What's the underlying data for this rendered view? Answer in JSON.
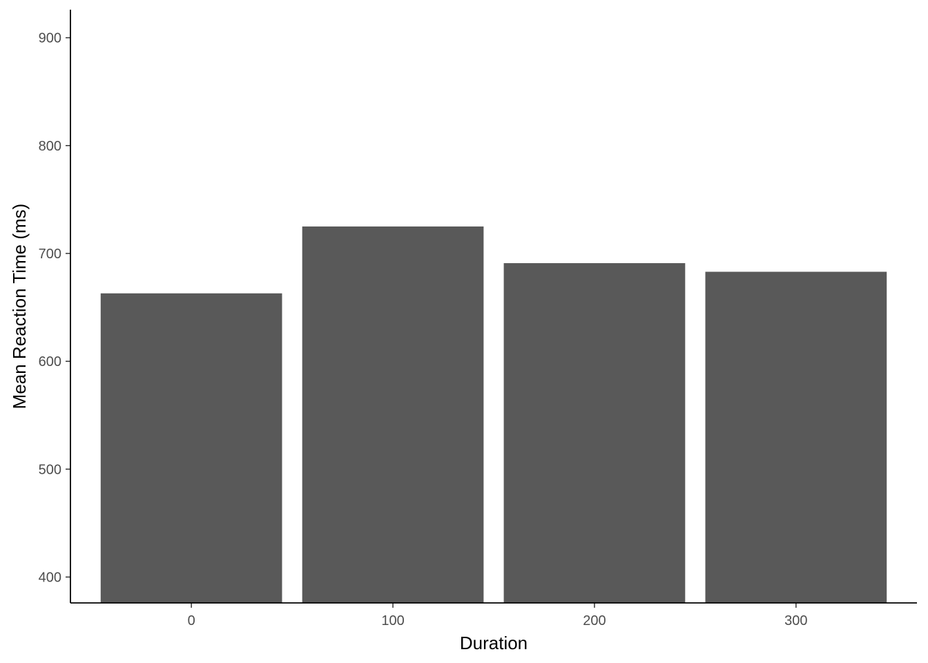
{
  "chart_data": {
    "type": "bar",
    "categories": [
      "0",
      "100",
      "200",
      "300"
    ],
    "values": [
      663,
      725,
      691,
      683
    ],
    "xlabel": "Duration",
    "ylabel": "Mean Reaction Time (ms)",
    "ylim": [
      376,
      926
    ],
    "yticks": [
      400,
      500,
      600,
      700,
      800,
      900
    ],
    "ytick_labels": [
      "400",
      "500",
      "600",
      "700",
      "800",
      "900"
    ],
    "grid": false,
    "bar_color": "#595959",
    "axis_color": "#000000"
  }
}
